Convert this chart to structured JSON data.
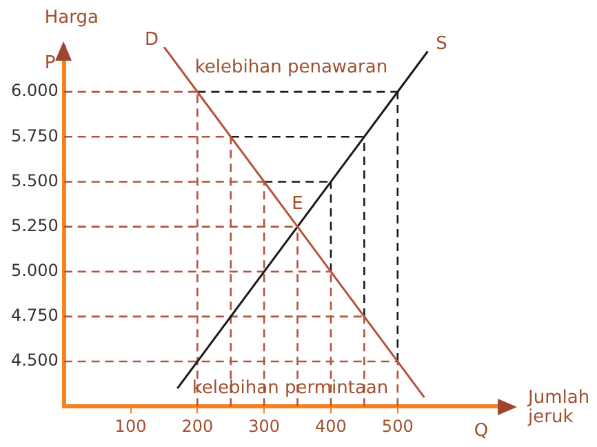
{
  "chart_data": {
    "type": "line",
    "xlabel": "Jumlah jeruk",
    "ylabel": "Harga",
    "annotations": [
      "P",
      "Q",
      "kelebihan penawaran",
      "kelebihan permintaan",
      {
        "text": "E",
        "x": 350,
        "y": 5250
      }
    ],
    "xlim": [
      0,
      650
    ],
    "xticks": [
      100,
      200,
      300,
      400,
      500
    ],
    "ylim": [
      4250,
      6250
    ],
    "yticks": [
      {
        "value": 4500,
        "label": "4.500"
      },
      {
        "value": 4750,
        "label": "4.750"
      },
      {
        "value": 5000,
        "label": "5.000"
      },
      {
        "value": 5250,
        "label": "5.250"
      },
      {
        "value": 5500,
        "label": "5.500"
      },
      {
        "value": 5750,
        "label": "5.750"
      },
      {
        "value": 6000,
        "label": "6.000"
      }
    ],
    "grid": false,
    "legend": false,
    "marker": "none",
    "series": [
      {
        "name": "D",
        "color": "#b5533c",
        "line_style": "solid",
        "x": [
          150,
          540
        ],
        "values": [
          6250,
          4300
        ]
      },
      {
        "name": "S",
        "color": "#1a1a1a",
        "line_style": "solid",
        "x": [
          170,
          545
        ],
        "values": [
          4350,
          6225
        ]
      },
      {
        "color": "#b5533c",
        "line_style": "dashed",
        "x": [
          0,
          200
        ],
        "values": [
          6000,
          6000
        ]
      },
      {
        "color": "#b5533c",
        "line_style": "dashed",
        "x": [
          0,
          250
        ],
        "values": [
          5750,
          5750
        ]
      },
      {
        "color": "#b5533c",
        "line_style": "dashed",
        "x": [
          0,
          300
        ],
        "values": [
          5500,
          5500
        ]
      },
      {
        "color": "#b5533c",
        "line_style": "dashed",
        "x": [
          0,
          350
        ],
        "values": [
          5250,
          5250
        ]
      },
      {
        "color": "#b5533c",
        "line_style": "dashed",
        "x": [
          0,
          400
        ],
        "values": [
          5000,
          5000
        ]
      },
      {
        "color": "#b5533c",
        "line_style": "dashed",
        "x": [
          0,
          450
        ],
        "values": [
          4750,
          4750
        ]
      },
      {
        "color": "#b5533c",
        "line_style": "dashed",
        "x": [
          0,
          500
        ],
        "values": [
          4500,
          4500
        ]
      },
      {
        "color": "#b5533c",
        "line_style": "dashed",
        "x": [
          200,
          200
        ],
        "values": [
          4250,
          6000
        ]
      },
      {
        "color": "#b5533c",
        "line_style": "dashed",
        "x": [
          250,
          250
        ],
        "values": [
          4250,
          5750
        ]
      },
      {
        "color": "#b5533c",
        "line_style": "dashed",
        "x": [
          300,
          300
        ],
        "values": [
          4250,
          5500
        ]
      },
      {
        "color": "#b5533c",
        "line_style": "dashed",
        "x": [
          350,
          350
        ],
        "values": [
          4250,
          5250
        ]
      },
      {
        "color": "#b5533c",
        "line_style": "dashed",
        "x": [
          400,
          400
        ],
        "values": [
          4250,
          5000
        ]
      },
      {
        "color": "#b5533c",
        "line_style": "dashed",
        "x": [
          450,
          450
        ],
        "values": [
          4250,
          4750
        ]
      },
      {
        "color": "#b5533c",
        "line_style": "dashed",
        "x": [
          500,
          500
        ],
        "values": [
          4250,
          4500
        ]
      },
      {
        "color": "#1a1a1a",
        "line_style": "dashed",
        "x": [
          200,
          500
        ],
        "values": [
          6000,
          6000
        ]
      },
      {
        "color": "#1a1a1a",
        "line_style": "dashed",
        "x": [
          250,
          450
        ],
        "values": [
          5750,
          5750
        ]
      },
      {
        "color": "#1a1a1a",
        "line_style": "dashed",
        "x": [
          300,
          400
        ],
        "values": [
          5500,
          5500
        ]
      },
      {
        "color": "#1a1a1a",
        "line_style": "dashed",
        "x": [
          400,
          400
        ],
        "values": [
          5000,
          5500
        ]
      },
      {
        "color": "#1a1a1a",
        "line_style": "dashed",
        "x": [
          450,
          450
        ],
        "values": [
          4750,
          5750
        ]
      },
      {
        "color": "#1a1a1a",
        "line_style": "dashed",
        "x": [
          500,
          500
        ],
        "values": [
          4500,
          6000
        ]
      }
    ]
  }
}
